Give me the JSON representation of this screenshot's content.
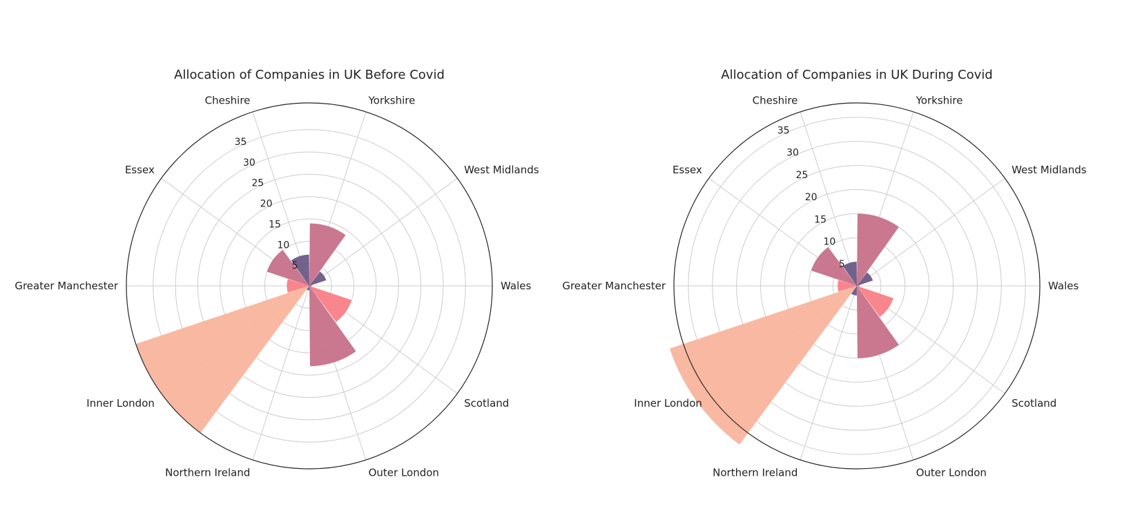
{
  "chart_data": [
    {
      "type": "polar-bar",
      "title": "Allocation of Companies in UK Before Covid",
      "categories": [
        "Wales",
        "West Midlands",
        "Yorkshire",
        "Cheshire",
        "Essex",
        "Greater Manchester",
        "Inner London",
        "Northern Ireland",
        "Outer London",
        "Scotland"
      ],
      "values": [
        0.5,
        4,
        14,
        7,
        10,
        5,
        41,
        1,
        18,
        10
      ],
      "colors": [
        "#c7708a",
        "#6a5a86",
        "#c7708a",
        "#6a5a86",
        "#c7708a",
        "#f88086",
        "#f9b49d",
        "#6a5a86",
        "#c7708a",
        "#f88086"
      ],
      "r_ticks": [
        5,
        10,
        15,
        20,
        25,
        30,
        35
      ],
      "ylim": [
        0,
        41
      ],
      "grid": true
    },
    {
      "type": "polar-bar",
      "title": "Allocation of Companies in UK During Covid",
      "categories": [
        "Wales",
        "West Midlands",
        "Yorkshire",
        "Cheshire",
        "Essex",
        "Greater Manchester",
        "Inner London",
        "Northern Ireland",
        "Outer London",
        "Scotland"
      ],
      "values": [
        0.5,
        3.5,
        15,
        5,
        10,
        4,
        41,
        2,
        15,
        8
      ],
      "colors": [
        "#c7708a",
        "#6a5a86",
        "#c7708a",
        "#6a5a86",
        "#c7708a",
        "#f88086",
        "#f9b49d",
        "#6a5a86",
        "#c7708a",
        "#f88086"
      ],
      "r_ticks": [
        5,
        10,
        15,
        20,
        25,
        30,
        35
      ],
      "ylim": [
        0,
        38
      ],
      "grid": true
    }
  ]
}
